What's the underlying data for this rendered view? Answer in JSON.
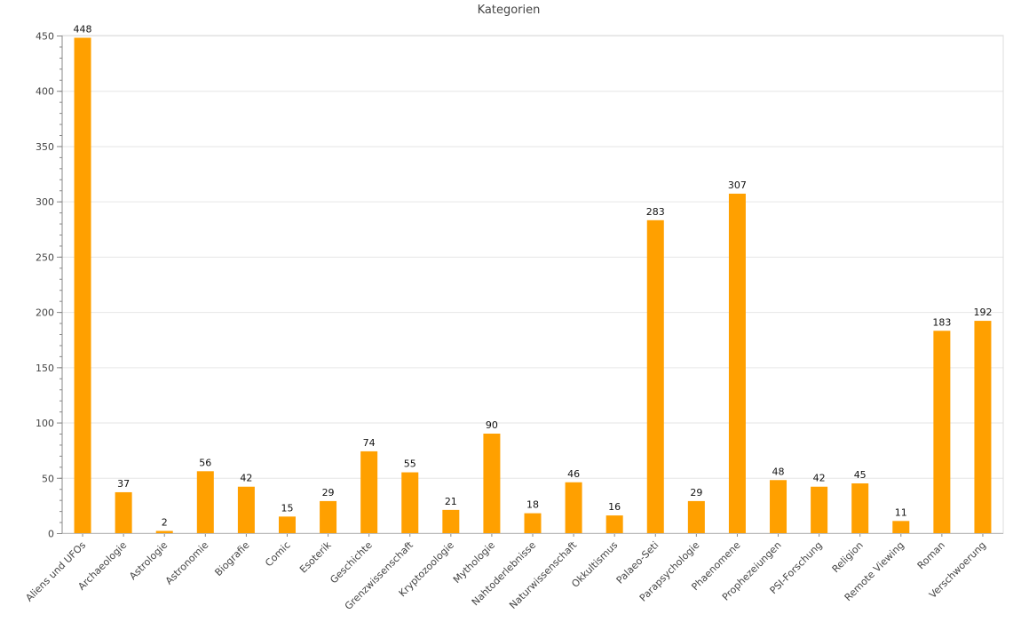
{
  "chart_data": {
    "type": "bar",
    "title": "Kategorien",
    "xlabel": "",
    "ylabel": "",
    "ylim": [
      0,
      450
    ],
    "yticks": [
      0,
      50,
      100,
      150,
      200,
      250,
      300,
      350,
      400,
      450
    ],
    "grid": true,
    "bar_color": "#ffa000",
    "categories": [
      "Aliens und UFOs",
      "Archaeologie",
      "Astrologie",
      "Astronomie",
      "Biografie",
      "Comic",
      "Esoterik",
      "Geschichte",
      "Grenzwissenschaft",
      "Kryptozoologie",
      "Mythologie",
      "Nahtoderlebnisse",
      "Naturwissenschaft",
      "Okkultismus",
      "Palaeo-Seti",
      "Parapsychologie",
      "Phaenomene",
      "Prophezeiungen",
      "PSI-Forschung",
      "Religion",
      "Remote Viewing",
      "Roman",
      "Verschwoerung"
    ],
    "values": [
      448,
      37,
      2,
      56,
      42,
      15,
      29,
      74,
      55,
      21,
      90,
      18,
      46,
      16,
      283,
      29,
      307,
      48,
      42,
      45,
      11,
      183,
      192
    ]
  }
}
